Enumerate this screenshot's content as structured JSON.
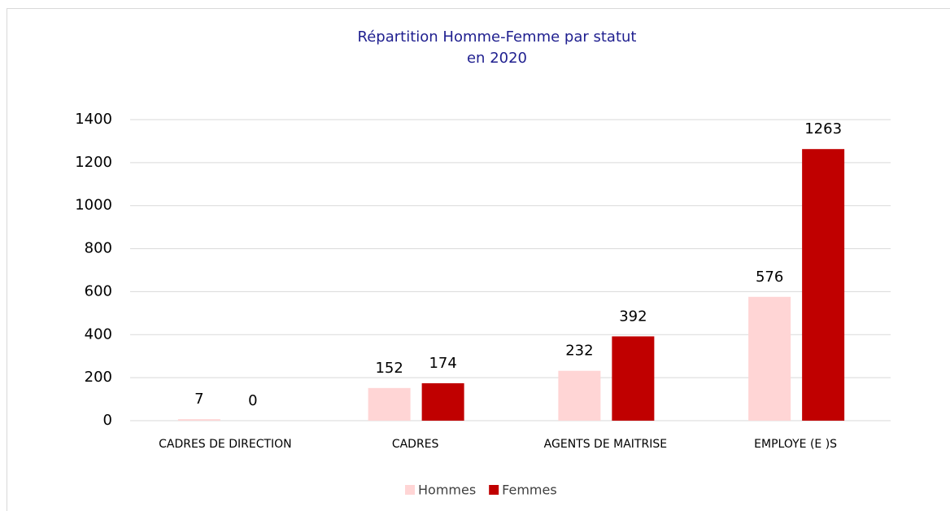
{
  "chart_data": {
    "type": "bar",
    "title_lines": [
      "Répartition Homme-Femme par statut",
      "en 2020"
    ],
    "categories": [
      "CADRES DE DIRECTION",
      "CADRES",
      "AGENTS DE MAITRISE",
      "EMPLOYE (E )S"
    ],
    "series": [
      {
        "name": "Hommes",
        "color": "#ffd5d5",
        "values": [
          7,
          152,
          232,
          576
        ]
      },
      {
        "name": "Femmes",
        "color": "#c00000",
        "values": [
          0,
          174,
          392,
          1263
        ]
      }
    ],
    "ylim": [
      0,
      1400
    ],
    "yticks": [
      0,
      200,
      400,
      600,
      800,
      1000,
      1200,
      1400
    ],
    "grid": true,
    "legend": "bottom"
  }
}
